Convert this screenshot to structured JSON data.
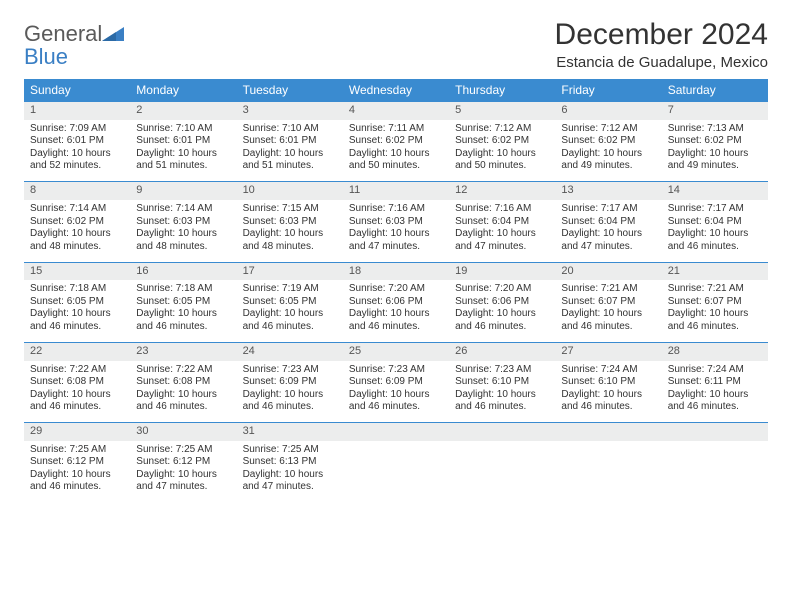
{
  "brand": {
    "word1": "General",
    "word2": "Blue"
  },
  "title": "December 2024",
  "location": "Estancia de Guadalupe, Mexico",
  "colors": {
    "header_bg": "#3a8bd0",
    "header_text": "#ffffff",
    "daynum_bg": "#eceded",
    "rule": "#3a8bd0",
    "text": "#333333",
    "brand_gray": "#5a5a5a",
    "brand_blue": "#3a7fc4"
  },
  "weekdays": [
    "Sunday",
    "Monday",
    "Tuesday",
    "Wednesday",
    "Thursday",
    "Friday",
    "Saturday"
  ],
  "days": {
    "1": {
      "sunrise": "7:09 AM",
      "sunset": "6:01 PM",
      "daylight": "10 hours and 52 minutes."
    },
    "2": {
      "sunrise": "7:10 AM",
      "sunset": "6:01 PM",
      "daylight": "10 hours and 51 minutes."
    },
    "3": {
      "sunrise": "7:10 AM",
      "sunset": "6:01 PM",
      "daylight": "10 hours and 51 minutes."
    },
    "4": {
      "sunrise": "7:11 AM",
      "sunset": "6:02 PM",
      "daylight": "10 hours and 50 minutes."
    },
    "5": {
      "sunrise": "7:12 AM",
      "sunset": "6:02 PM",
      "daylight": "10 hours and 50 minutes."
    },
    "6": {
      "sunrise": "7:12 AM",
      "sunset": "6:02 PM",
      "daylight": "10 hours and 49 minutes."
    },
    "7": {
      "sunrise": "7:13 AM",
      "sunset": "6:02 PM",
      "daylight": "10 hours and 49 minutes."
    },
    "8": {
      "sunrise": "7:14 AM",
      "sunset": "6:02 PM",
      "daylight": "10 hours and 48 minutes."
    },
    "9": {
      "sunrise": "7:14 AM",
      "sunset": "6:03 PM",
      "daylight": "10 hours and 48 minutes."
    },
    "10": {
      "sunrise": "7:15 AM",
      "sunset": "6:03 PM",
      "daylight": "10 hours and 48 minutes."
    },
    "11": {
      "sunrise": "7:16 AM",
      "sunset": "6:03 PM",
      "daylight": "10 hours and 47 minutes."
    },
    "12": {
      "sunrise": "7:16 AM",
      "sunset": "6:04 PM",
      "daylight": "10 hours and 47 minutes."
    },
    "13": {
      "sunrise": "7:17 AM",
      "sunset": "6:04 PM",
      "daylight": "10 hours and 47 minutes."
    },
    "14": {
      "sunrise": "7:17 AM",
      "sunset": "6:04 PM",
      "daylight": "10 hours and 46 minutes."
    },
    "15": {
      "sunrise": "7:18 AM",
      "sunset": "6:05 PM",
      "daylight": "10 hours and 46 minutes."
    },
    "16": {
      "sunrise": "7:18 AM",
      "sunset": "6:05 PM",
      "daylight": "10 hours and 46 minutes."
    },
    "17": {
      "sunrise": "7:19 AM",
      "sunset": "6:05 PM",
      "daylight": "10 hours and 46 minutes."
    },
    "18": {
      "sunrise": "7:20 AM",
      "sunset": "6:06 PM",
      "daylight": "10 hours and 46 minutes."
    },
    "19": {
      "sunrise": "7:20 AM",
      "sunset": "6:06 PM",
      "daylight": "10 hours and 46 minutes."
    },
    "20": {
      "sunrise": "7:21 AM",
      "sunset": "6:07 PM",
      "daylight": "10 hours and 46 minutes."
    },
    "21": {
      "sunrise": "7:21 AM",
      "sunset": "6:07 PM",
      "daylight": "10 hours and 46 minutes."
    },
    "22": {
      "sunrise": "7:22 AM",
      "sunset": "6:08 PM",
      "daylight": "10 hours and 46 minutes."
    },
    "23": {
      "sunrise": "7:22 AM",
      "sunset": "6:08 PM",
      "daylight": "10 hours and 46 minutes."
    },
    "24": {
      "sunrise": "7:23 AM",
      "sunset": "6:09 PM",
      "daylight": "10 hours and 46 minutes."
    },
    "25": {
      "sunrise": "7:23 AM",
      "sunset": "6:09 PM",
      "daylight": "10 hours and 46 minutes."
    },
    "26": {
      "sunrise": "7:23 AM",
      "sunset": "6:10 PM",
      "daylight": "10 hours and 46 minutes."
    },
    "27": {
      "sunrise": "7:24 AM",
      "sunset": "6:10 PM",
      "daylight": "10 hours and 46 minutes."
    },
    "28": {
      "sunrise": "7:24 AM",
      "sunset": "6:11 PM",
      "daylight": "10 hours and 46 minutes."
    },
    "29": {
      "sunrise": "7:25 AM",
      "sunset": "6:12 PM",
      "daylight": "10 hours and 46 minutes."
    },
    "30": {
      "sunrise": "7:25 AM",
      "sunset": "6:12 PM",
      "daylight": "10 hours and 47 minutes."
    },
    "31": {
      "sunrise": "7:25 AM",
      "sunset": "6:13 PM",
      "daylight": "10 hours and 47 minutes."
    }
  },
  "labels": {
    "sunrise": "Sunrise:",
    "sunset": "Sunset:",
    "daylight": "Daylight:"
  },
  "layout": {
    "weeks": [
      [
        1,
        2,
        3,
        4,
        5,
        6,
        7
      ],
      [
        8,
        9,
        10,
        11,
        12,
        13,
        14
      ],
      [
        15,
        16,
        17,
        18,
        19,
        20,
        21
      ],
      [
        22,
        23,
        24,
        25,
        26,
        27,
        28
      ],
      [
        29,
        30,
        31,
        null,
        null,
        null,
        null
      ]
    ]
  }
}
